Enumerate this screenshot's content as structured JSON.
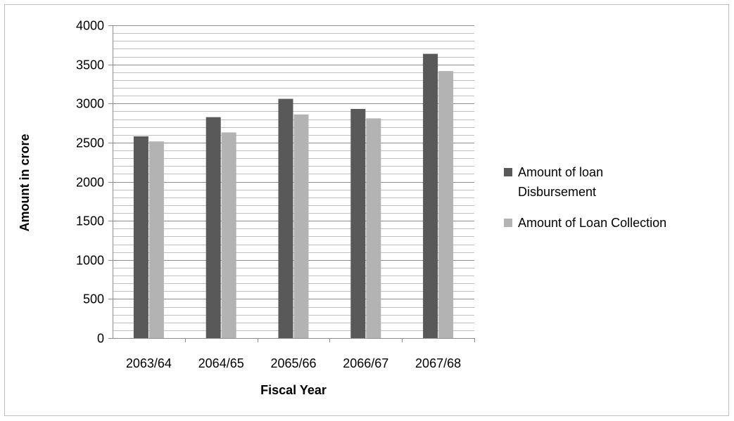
{
  "chart_data": {
    "type": "bar",
    "title": "",
    "xlabel": "Fiscal Year",
    "ylabel": "Amount in crore",
    "categories": [
      "2063/64",
      "2064/65",
      "2065/66",
      "2066/67",
      "2067/68"
    ],
    "series": [
      {
        "name": "Amount of loan Disbursement",
        "name_lines": [
          "Amount of loan",
          "Disbursement"
        ],
        "color": "#595959",
        "values": [
          2580,
          2825,
          3060,
          2930,
          3635
        ]
      },
      {
        "name": "Amount of Loan Collection",
        "name_lines": [
          "Amount of Loan Collection"
        ],
        "color": "#b3b3b3",
        "values": [
          2515,
          2630,
          2860,
          2810,
          3415
        ]
      }
    ],
    "ylim": [
      0,
      4000
    ],
    "yticks": [
      0,
      500,
      1000,
      1500,
      2000,
      2500,
      3000,
      3500,
      4000
    ],
    "minor_grid_step": 100,
    "grid": true,
    "legend_position": "right"
  }
}
